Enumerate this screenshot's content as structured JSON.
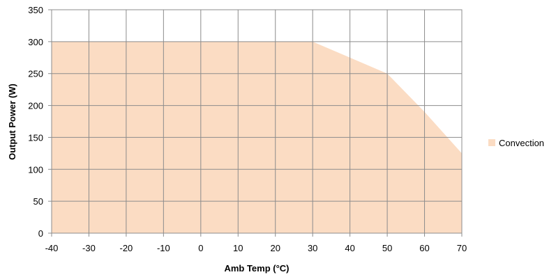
{
  "chart_data": {
    "type": "area",
    "title": "",
    "xlabel": "Amb Temp (°C)",
    "ylabel": "Output Power (W)",
    "xlim": [
      -40,
      70
    ],
    "ylim": [
      0,
      350
    ],
    "x_ticks": [
      -40,
      -30,
      -20,
      -10,
      0,
      10,
      20,
      30,
      40,
      50,
      60,
      70
    ],
    "y_ticks": [
      0,
      50,
      100,
      150,
      200,
      250,
      300,
      350
    ],
    "grid": true,
    "legend_position": "right",
    "series": [
      {
        "name": "Convection",
        "color": "#fbdcc3",
        "x": [
          -40,
          30,
          40,
          50,
          60,
          70
        ],
        "y": [
          300,
          300,
          275,
          250,
          190,
          125
        ]
      }
    ]
  }
}
